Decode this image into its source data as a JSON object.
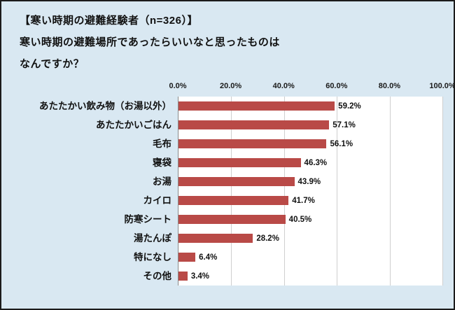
{
  "title": {
    "line1": "【寒い時期の避難経験者（n=326）】",
    "line2": "寒い時期の避難場所であったらいいなと思ったものは",
    "line3": "なんですか？"
  },
  "chart_data": {
    "type": "bar",
    "orientation": "horizontal",
    "title": "【寒い時期の避難経験者（n=326）】寒い時期の避難場所であったらいいなと思ったものはなんですか？",
    "categories": [
      "あたたかい飲み物（お湯以外）",
      "あたたかいごはん",
      "毛布",
      "寝袋",
      "お湯",
      "カイロ",
      "防寒シート",
      "湯たんぽ",
      "特になし",
      "その他"
    ],
    "values": [
      59.2,
      57.1,
      56.1,
      46.3,
      43.9,
      41.7,
      40.5,
      28.2,
      6.4,
      3.4
    ],
    "value_labels": [
      "59.2%",
      "57.1%",
      "56.1%",
      "46.3%",
      "43.9%",
      "41.7%",
      "40.5%",
      "28.2%",
      "6.4%",
      "3.4%"
    ],
    "xlim": [
      0,
      100
    ],
    "xticks": [
      {
        "value": 0,
        "label": "0.0%"
      },
      {
        "value": 20,
        "label": "20.0%"
      },
      {
        "value": 40,
        "label": "40.0%"
      },
      {
        "value": 60,
        "label": "60.0%"
      },
      {
        "value": 80,
        "label": "80.0%"
      },
      {
        "value": 100,
        "label": "100.0%"
      }
    ],
    "grid": true,
    "legend": "none",
    "bar_color": "#b94a47",
    "background_color": "#d9e8f2"
  }
}
